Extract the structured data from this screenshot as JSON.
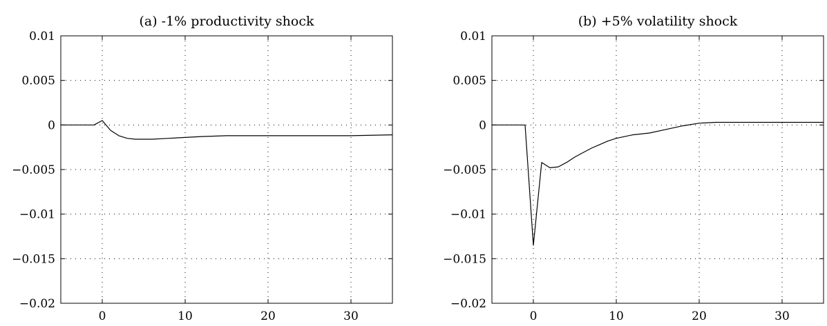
{
  "chart_data": [
    {
      "type": "line",
      "title": "(a) -1% productivity shock",
      "xlabel": "",
      "ylabel": "",
      "xlim": [
        -5,
        35
      ],
      "ylim": [
        -0.02,
        0.01
      ],
      "grid": true,
      "x_ticks": [
        0,
        10,
        20,
        30
      ],
      "x_tick_labels": [
        "0",
        "10",
        "20",
        "30"
      ],
      "y_ticks": [
        0.01,
        0.005,
        0,
        -0.005,
        -0.01,
        -0.015,
        -0.02
      ],
      "y_tick_labels": [
        "0.01",
        "0.005",
        "0",
        "−0.005",
        "−0.01",
        "−0.015",
        "−0.02"
      ],
      "series": [
        {
          "x": [
            -5,
            -4,
            -3,
            -2,
            -1,
            0,
            1,
            2,
            3,
            4,
            5,
            6,
            8,
            10,
            12,
            15,
            18,
            20,
            25,
            30,
            35
          ],
          "y": [
            0,
            0,
            0,
            0,
            0,
            0.0005,
            -0.0006,
            -0.0012,
            -0.0015,
            -0.0016,
            -0.0016,
            -0.0016,
            -0.0015,
            -0.0014,
            -0.0013,
            -0.0012,
            -0.0012,
            -0.0012,
            -0.0012,
            -0.0012,
            -0.0011
          ]
        }
      ]
    },
    {
      "type": "line",
      "title": "(b) +5% volatility shock",
      "xlabel": "",
      "ylabel": "",
      "xlim": [
        -5,
        35
      ],
      "ylim": [
        -0.02,
        0.01
      ],
      "grid": true,
      "x_ticks": [
        0,
        10,
        20,
        30
      ],
      "x_tick_labels": [
        "0",
        "10",
        "20",
        "30"
      ],
      "y_ticks": [
        0.01,
        0.005,
        0,
        -0.005,
        -0.01,
        -0.015,
        -0.02
      ],
      "y_tick_labels": [
        "0.01",
        "0.005",
        "0",
        "−0.005",
        "−0.01",
        "−0.015",
        "−0.02"
      ],
      "series": [
        {
          "x": [
            -5,
            -4,
            -3,
            -2,
            -1,
            0,
            1,
            2,
            3,
            4,
            5,
            6,
            7,
            8,
            9,
            10,
            12,
            14,
            16,
            18,
            20,
            22,
            25,
            30,
            35
          ],
          "y": [
            0,
            0,
            0,
            0,
            0,
            -0.0135,
            -0.0042,
            -0.0048,
            -0.0047,
            -0.0042,
            -0.0036,
            -0.0031,
            -0.0026,
            -0.0022,
            -0.0018,
            -0.0015,
            -0.0011,
            -0.0009,
            -0.0005,
            -0.0001,
            0.0002,
            0.0003,
            0.0003,
            0.0003,
            0.0003
          ]
        }
      ]
    }
  ]
}
